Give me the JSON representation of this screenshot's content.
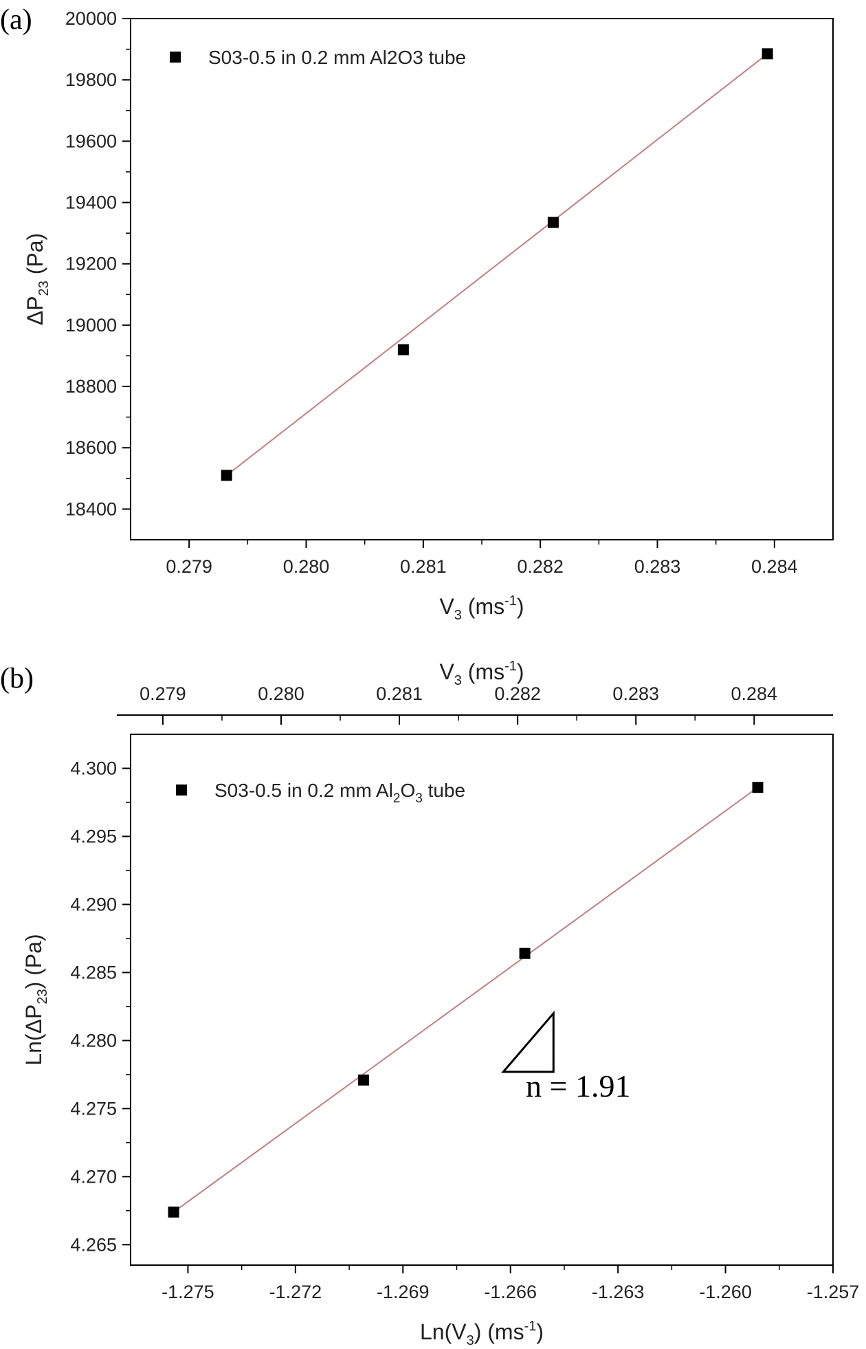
{
  "chart_data": [
    {
      "panel_label": "(a)",
      "type": "scatter",
      "xlabel": "V3 (ms-1)",
      "xlabel_parts": {
        "base": "V",
        "sub": "3",
        "unit_pre": " (ms",
        "sup": "-1",
        "unit_post": ")"
      },
      "ylabel": "ΔP23 (Pa)",
      "ylabel_parts": {
        "base": "ΔP",
        "sub": "23",
        "unit": " (Pa)"
      },
      "xlim": [
        0.2785,
        0.2845
      ],
      "ylim": [
        18300,
        20000
      ],
      "x_ticks": [
        "0.279",
        "0.280",
        "0.281",
        "0.282",
        "0.283",
        "0.284"
      ],
      "x_tick_values": [
        0.279,
        0.28,
        0.281,
        0.282,
        0.283,
        0.284
      ],
      "y_ticks": [
        "18400",
        "18600",
        "18800",
        "19000",
        "19200",
        "19400",
        "19600",
        "19800",
        "20000"
      ],
      "y_tick_values": [
        18400,
        18600,
        18800,
        19000,
        19200,
        19400,
        19600,
        19800,
        20000
      ],
      "series": [
        {
          "name": "S03-0.5 in 0.2 mm Al2O3 tube",
          "x": [
            0.27932,
            0.28083,
            0.28211,
            0.28394
          ],
          "y": [
            18510,
            18920,
            19335,
            19885
          ]
        }
      ],
      "fit_line": {
        "x": [
          0.27932,
          0.28394
        ],
        "y": [
          18510,
          19885
        ],
        "color": "#c08080"
      },
      "legend": {
        "placement": "top-left",
        "label": "S03-0.5 in 0.2 mm Al2O3 tube"
      },
      "marker_color": "#000000"
    },
    {
      "panel_label": "(b)",
      "type": "scatter",
      "xlabel": "Ln(V3) (ms-1)",
      "xlabel_parts": {
        "pre": "Ln(V",
        "sub": "3",
        "post": ") (ms",
        "sup": "-1",
        "end": ")"
      },
      "x2label": "V3 (ms-1)",
      "x2label_parts": {
        "base": "V",
        "sub": "3",
        "unit_pre": " (ms",
        "sup": "-1",
        "unit_post": ")"
      },
      "ylabel": "Ln(ΔP23) (Pa)",
      "ylabel_parts": {
        "pre": "Ln(ΔP",
        "sub": "23",
        "post": ") (Pa)"
      },
      "xlim": [
        -1.2766,
        -1.257
      ],
      "ylim": [
        4.2635,
        4.3025
      ],
      "x_ticks": [
        "-1.275",
        "-1.272",
        "-1.269",
        "-1.266",
        "-1.263",
        "-1.260",
        "-1.257"
      ],
      "x_tick_values": [
        -1.275,
        -1.272,
        -1.269,
        -1.266,
        -1.263,
        -1.26,
        -1.257
      ],
      "x2_ticks": [
        "0.279",
        "0.280",
        "0.281",
        "0.282",
        "0.283",
        "0.284"
      ],
      "x2_tick_values": [
        0.279,
        0.28,
        0.281,
        0.282,
        0.283,
        0.284
      ],
      "y_ticks": [
        "4.265",
        "4.270",
        "4.275",
        "4.280",
        "4.285",
        "4.290",
        "4.295",
        "4.300"
      ],
      "y_tick_values": [
        4.265,
        4.27,
        4.275,
        4.28,
        4.285,
        4.29,
        4.295,
        4.3
      ],
      "series": [
        {
          "name": "S03-0.5 in 0.2 mm Al2O3 tube",
          "x": [
            -1.2754,
            -1.2701,
            -1.2656,
            -1.2591
          ],
          "y": [
            4.2674,
            4.2771,
            4.2864,
            4.2986
          ]
        }
      ],
      "fit_line": {
        "x": [
          -1.2754,
          -1.2591
        ],
        "y": [
          4.2674,
          4.2986
        ],
        "color": "#c08080"
      },
      "legend": {
        "placement": "top-left",
        "label_pre": "S03-0.5 in 0.2 mm Al",
        "sub1": "2",
        "label_mid": "O",
        "sub2": "3",
        "label_post": " tube"
      },
      "annotation": {
        "text": "n = 1.91",
        "slope_triangle": {
          "x": [
            -1.2662,
            -1.2648
          ],
          "y": [
            4.2777,
            4.282
          ]
        }
      },
      "marker_color": "#000000"
    }
  ]
}
